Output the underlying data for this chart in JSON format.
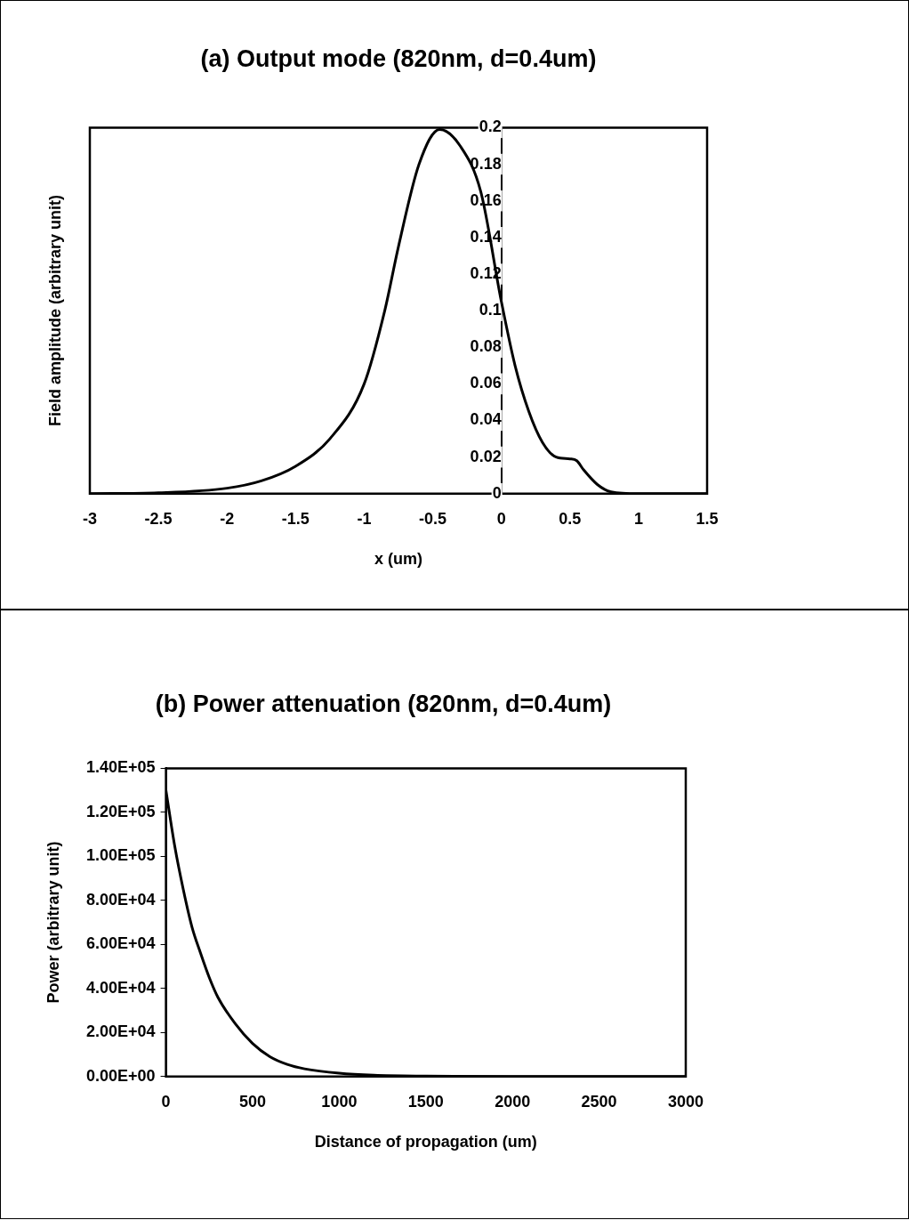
{
  "chart_data": [
    {
      "type": "line",
      "title": "(a) Output mode (820nm, d=0.4um)",
      "xlabel": "x (um)",
      "ylabel": "Field amplitude (arbitrary unit)",
      "marker": "none",
      "grid": false,
      "legend": false,
      "xlim": [
        -3,
        1.5
      ],
      "xticks": [
        -3,
        -2.5,
        -2,
        -1.5,
        -1,
        -0.5,
        0,
        0.5,
        1,
        1.5
      ],
      "ylim": [
        0,
        0.2
      ],
      "yticks": [
        0,
        0.02,
        0.04,
        0.06,
        0.08,
        0.1,
        0.12,
        0.14,
        0.16,
        0.18,
        0.2
      ],
      "x": [
        -3,
        -2.5,
        -2,
        -1.75,
        -1.5,
        -1.25,
        -1,
        -0.85,
        -0.75,
        -0.6,
        -0.45,
        -0.3,
        -0.15,
        0,
        0.1,
        0.2,
        0.3,
        0.4,
        0.5,
        0.55,
        0.6,
        0.7,
        0.8,
        1,
        1.5
      ],
      "series": [
        {
          "color": "#000000",
          "values": [
            0,
            0.0005,
            0.003,
            0.007,
            0.015,
            0.03,
            0.06,
            0.1,
            0.135,
            0.18,
            0.199,
            0.19,
            0.165,
            0.105,
            0.07,
            0.045,
            0.028,
            0.02,
            0.019,
            0.018,
            0.013,
            0.005,
            0.001,
            0,
            0
          ]
        }
      ]
    },
    {
      "type": "line",
      "title": "(b) Power attenuation (820nm, d=0.4um)",
      "xlabel": "Distance of propagation (um)",
      "ylabel": "Power (arbitrary unit)",
      "marker": "none",
      "grid": false,
      "legend": false,
      "xlim": [
        0,
        3000
      ],
      "xticks": [
        0,
        500,
        1000,
        1500,
        2000,
        2500,
        3000
      ],
      "ylim": [
        0,
        140000
      ],
      "yticks": [
        {
          "value": 0,
          "label": "0.00E+00"
        },
        {
          "value": 20000,
          "label": "2.00E+04"
        },
        {
          "value": 40000,
          "label": "4.00E+04"
        },
        {
          "value": 60000,
          "label": "6.00E+04"
        },
        {
          "value": 80000,
          "label": "8.00E+04"
        },
        {
          "value": 100000,
          "label": "1.00E+05"
        },
        {
          "value": 120000,
          "label": "1.20E+05"
        },
        {
          "value": 140000,
          "label": "1.40E+05"
        }
      ],
      "x": [
        0,
        50,
        100,
        150,
        200,
        250,
        300,
        400,
        500,
        600,
        700,
        800,
        1000,
        1200,
        1500,
        2000,
        2500,
        3000
      ],
      "series": [
        {
          "color": "#000000",
          "values": [
            130000,
            105000,
            85000,
            68000,
            56000,
            45000,
            36000,
            24000,
            15000,
            9000,
            5500,
            3500,
            1500,
            600,
            200,
            0,
            0,
            0
          ]
        }
      ]
    }
  ]
}
